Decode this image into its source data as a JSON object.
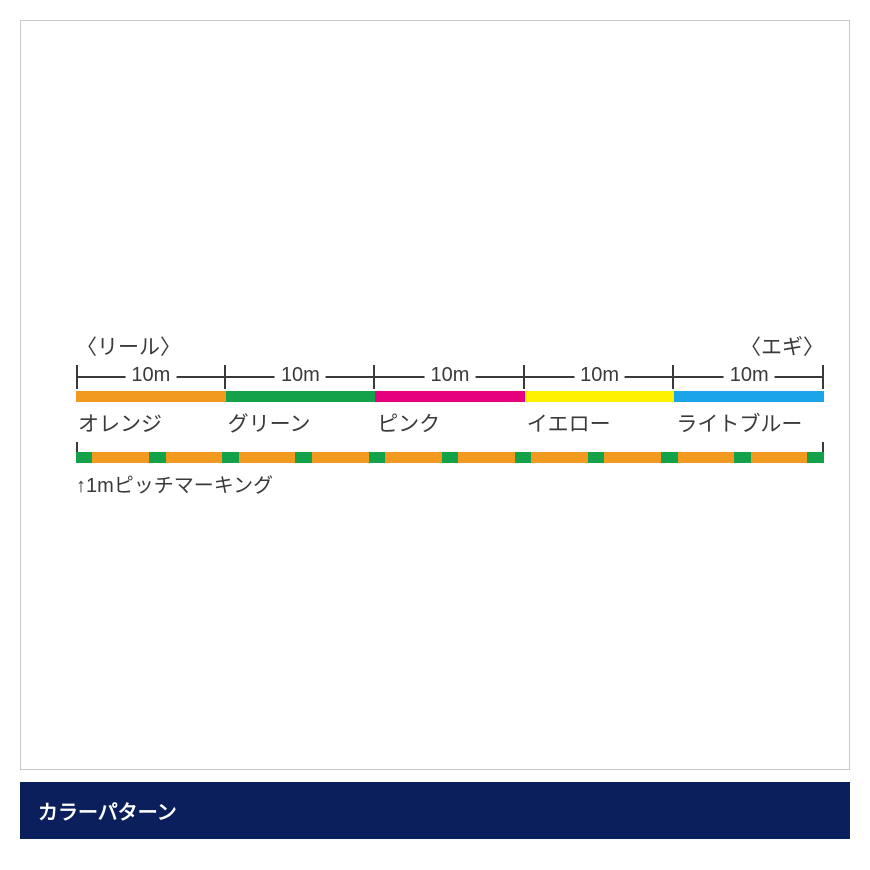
{
  "endLabels": {
    "left": "〈リール〉",
    "right": "〈エギ〉"
  },
  "segments": [
    {
      "length": "10m",
      "name": "オレンジ",
      "color": "#f29a1f"
    },
    {
      "length": "10m",
      "name": "グリーン",
      "color": "#13a24a"
    },
    {
      "length": "10m",
      "name": "ピンク",
      "color": "#e6007e"
    },
    {
      "length": "10m",
      "name": "イエロー",
      "color": "#fef200"
    },
    {
      "length": "10m",
      "name": "ライトブルー",
      "color": "#1ba4e8"
    }
  ],
  "marking": {
    "label": "↑1mピッチマーキング",
    "baseColor": "#f29a1f",
    "markColor": "#13a24a",
    "markCount": 11,
    "markWidthPct": 2.2
  },
  "dimLineColor": "#3a3a3a",
  "caption": "カラーパターン",
  "captionBg": "#0b1f5c",
  "captionFg": "#ffffff",
  "textColor": "#3a3a3a",
  "fontSize": {
    "label": 21,
    "dim": 20,
    "caption": 20
  }
}
